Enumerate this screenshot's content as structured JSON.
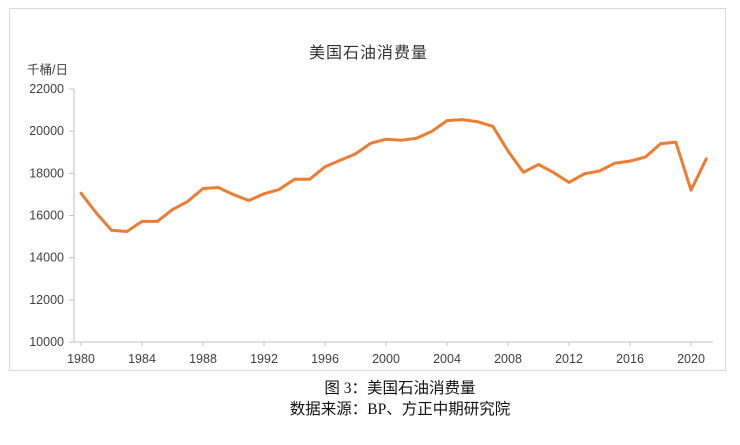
{
  "chart": {
    "title": "美国石油消费量",
    "unit_label": "千桶/日",
    "line_color": "#ED7D31",
    "axis_color": "#BFBFBF",
    "border_color": "#D9D9D9",
    "tick_text_color": "#404040"
  },
  "chart_data": {
    "type": "line",
    "title": "美国石油消费量",
    "ylabel": "千桶/日",
    "series_name": "美国石油消费量",
    "x": [
      1980,
      1981,
      1982,
      1983,
      1984,
      1985,
      1986,
      1987,
      1988,
      1989,
      1990,
      1991,
      1992,
      1993,
      1994,
      1995,
      1996,
      1997,
      1998,
      1999,
      2000,
      2001,
      2002,
      2003,
      2004,
      2005,
      2006,
      2007,
      2008,
      2009,
      2010,
      2011,
      2012,
      2013,
      2014,
      2015,
      2016,
      2017,
      2018,
      2019,
      2020,
      2021
    ],
    "values": [
      17060,
      16120,
      15300,
      15240,
      15720,
      15720,
      16280,
      16670,
      17280,
      17330,
      16990,
      16710,
      17030,
      17240,
      17720,
      17720,
      18310,
      18620,
      18920,
      19430,
      19620,
      19570,
      19660,
      19990,
      20500,
      20550,
      20450,
      20230,
      19060,
      18050,
      18420,
      18030,
      17570,
      17980,
      18110,
      18480,
      18580,
      18770,
      19400,
      19480,
      17200,
      18690
    ],
    "ylim": [
      10000,
      22000
    ],
    "yticks": [
      10000,
      12000,
      14000,
      16000,
      18000,
      20000,
      22000
    ],
    "xticks": [
      1980,
      1984,
      1988,
      1992,
      1996,
      2000,
      2004,
      2008,
      2012,
      2016,
      2020
    ],
    "grid": false,
    "legend": "none"
  },
  "caption": {
    "line1": "图 3：美国石油消费量",
    "line2": "数据来源：BP、方正中期研究院"
  }
}
